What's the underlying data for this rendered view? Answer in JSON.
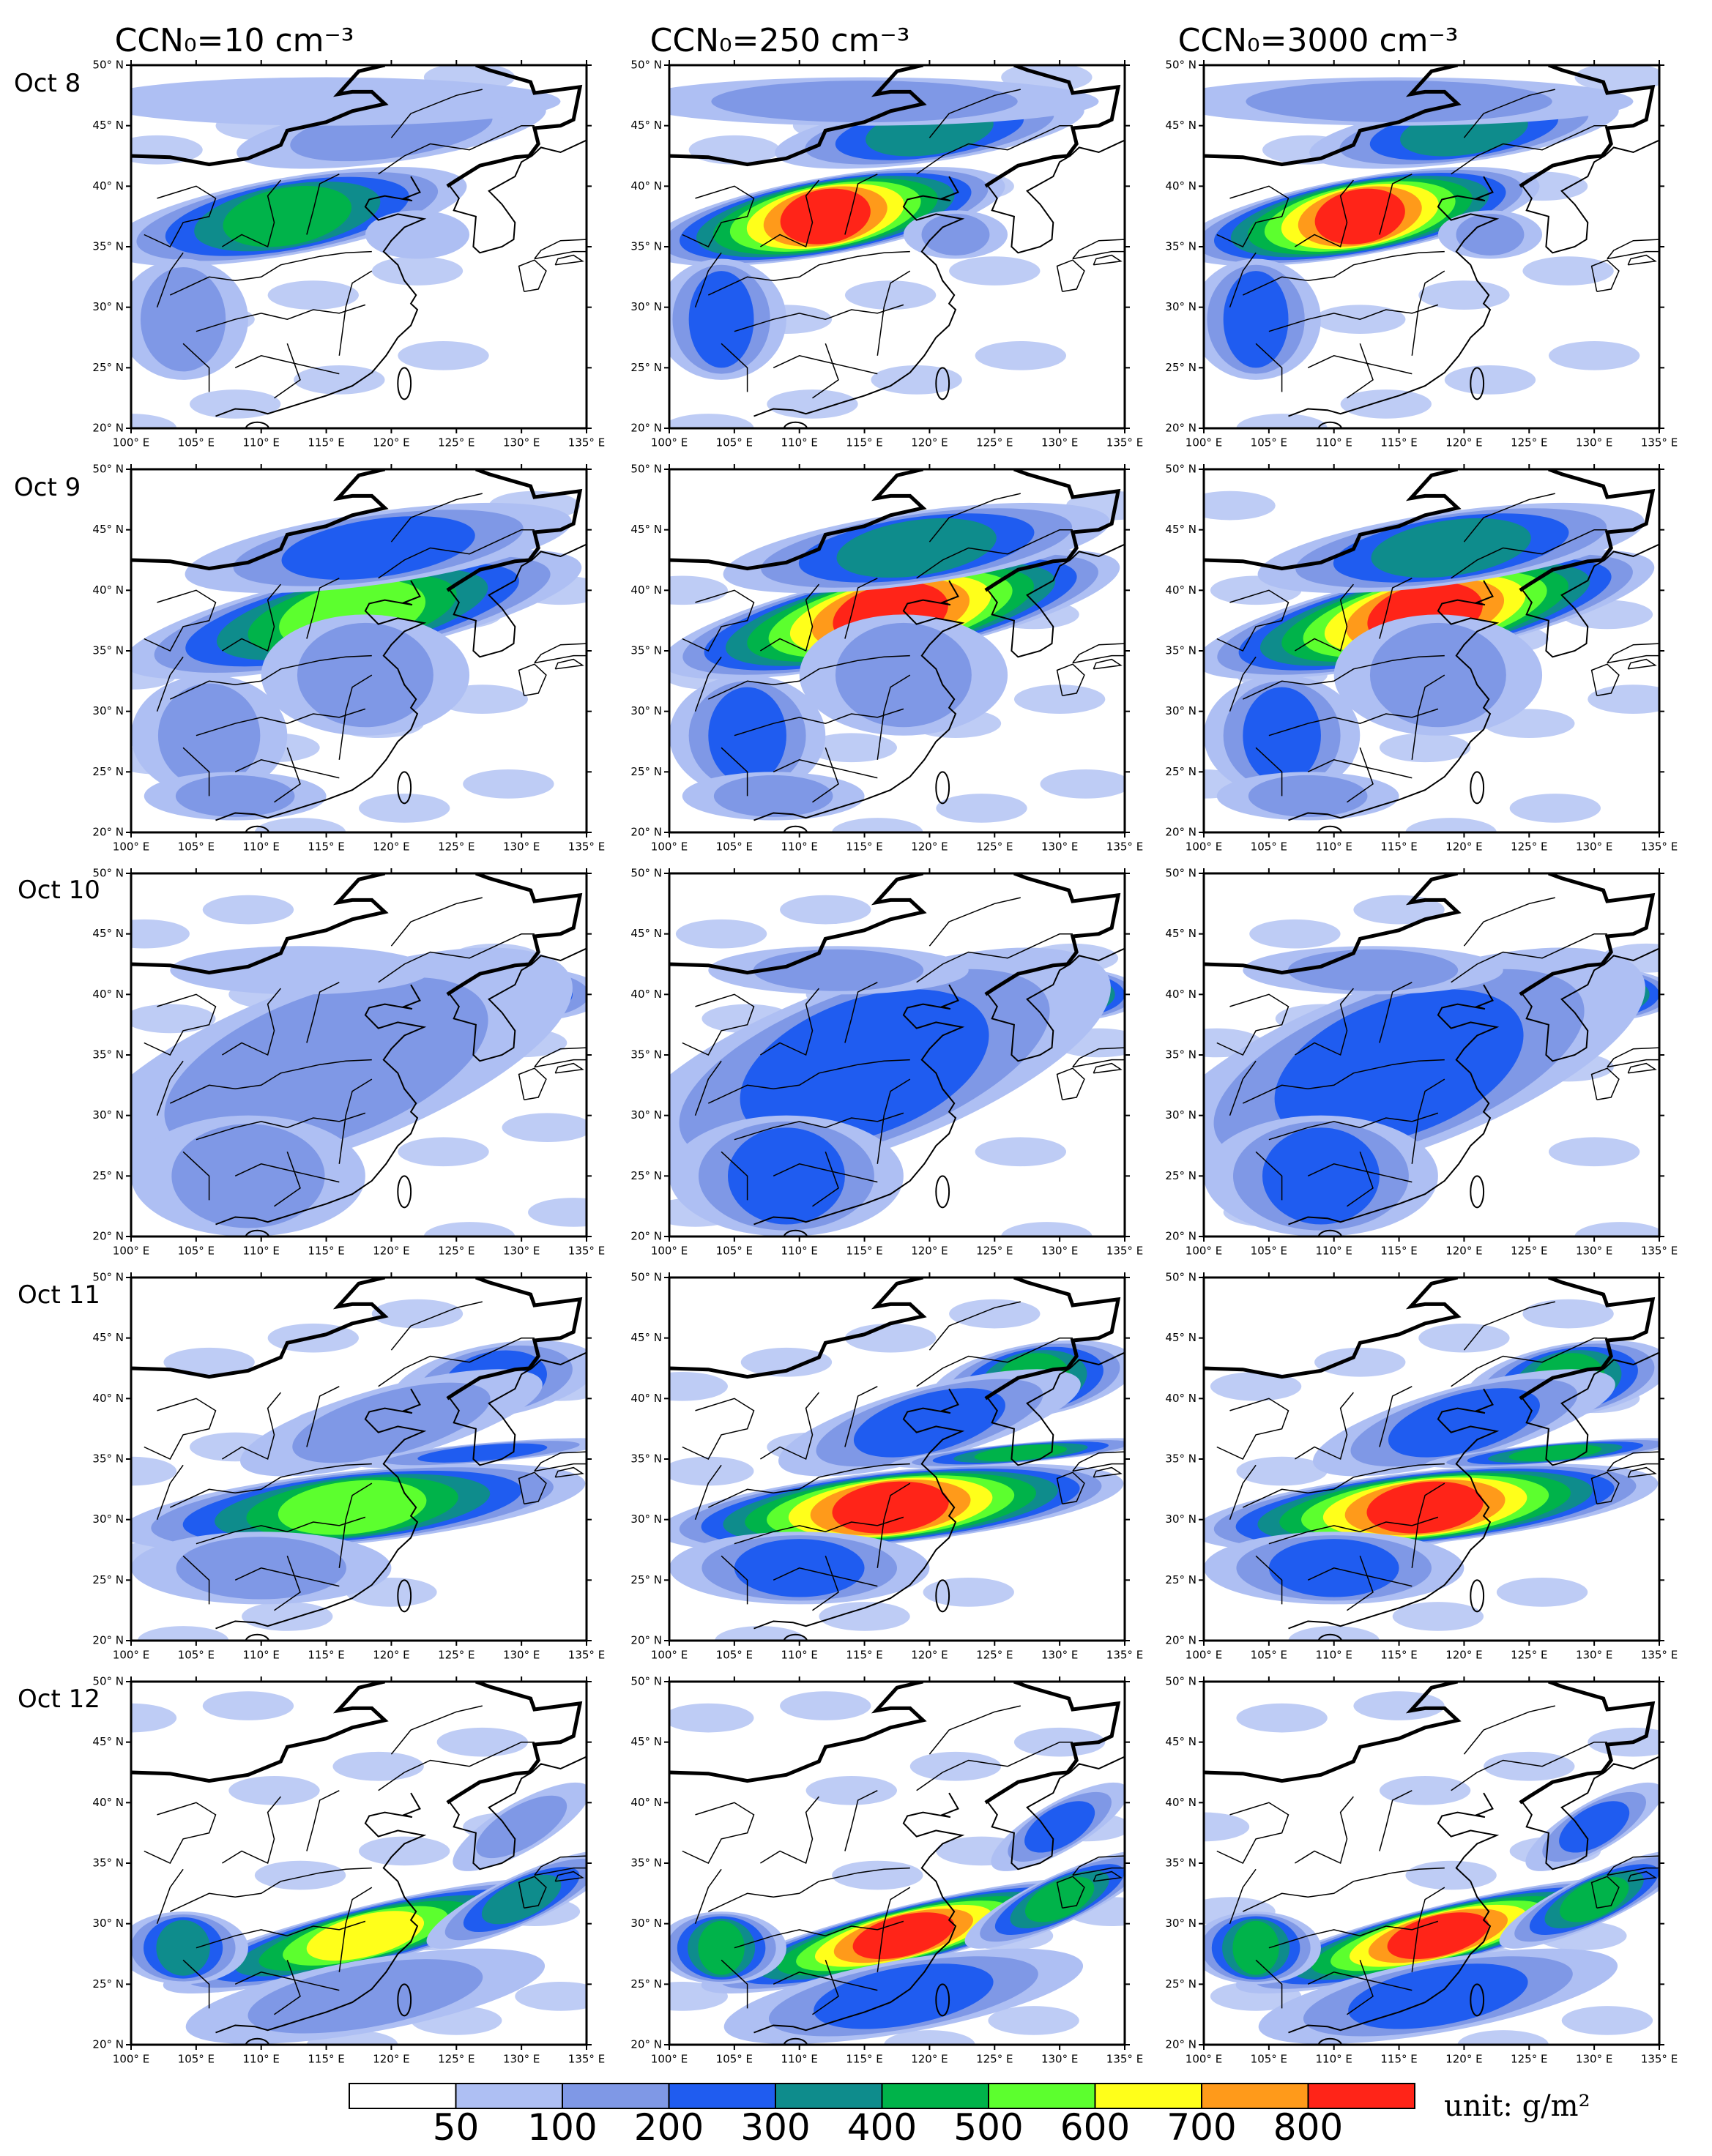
{
  "column_titles": [
    "CCN₀=10 cm⁻³",
    "CCN₀=250 cm⁻³",
    "CCN₀=3000 cm⁻³"
  ],
  "row_labels": [
    "Oct 8",
    "Oct 9",
    "Oct 10",
    "Oct 11",
    "Oct 12"
  ],
  "map": {
    "type": "map",
    "xlim": [
      100,
      135
    ],
    "ylim": [
      20,
      50
    ],
    "xticks": [
      {
        "value": 100,
        "label": "100° E"
      },
      {
        "value": 105,
        "label": "105° E"
      },
      {
        "value": 110,
        "label": "110° E"
      },
      {
        "value": 115,
        "label": "115° E"
      },
      {
        "value": 120,
        "label": "120° E"
      },
      {
        "value": 125,
        "label": "125° E"
      },
      {
        "value": 130,
        "label": "130° E"
      },
      {
        "value": 135,
        "label": "135° E"
      }
    ],
    "yticks": [
      {
        "value": 20,
        "label": "20° N"
      },
      {
        "value": 25,
        "label": "25° N"
      },
      {
        "value": 30,
        "label": "30° N"
      },
      {
        "value": 35,
        "label": "35° N"
      },
      {
        "value": 40,
        "label": "40° N"
      },
      {
        "value": 45,
        "label": "45° N"
      },
      {
        "value": 50,
        "label": "50° N"
      }
    ]
  },
  "colorbar": {
    "levels": [
      50,
      100,
      200,
      300,
      400,
      500,
      600,
      700,
      800
    ],
    "colors": [
      "#ffffff",
      "#aebff3",
      "#7f98e6",
      "#1f5cf0",
      "#0e8c8c",
      "#00b34a",
      "#5cff2e",
      "#ffff1a",
      "#ff9a1a",
      "#ff2418"
    ],
    "unit": "unit: g/m²"
  }
}
